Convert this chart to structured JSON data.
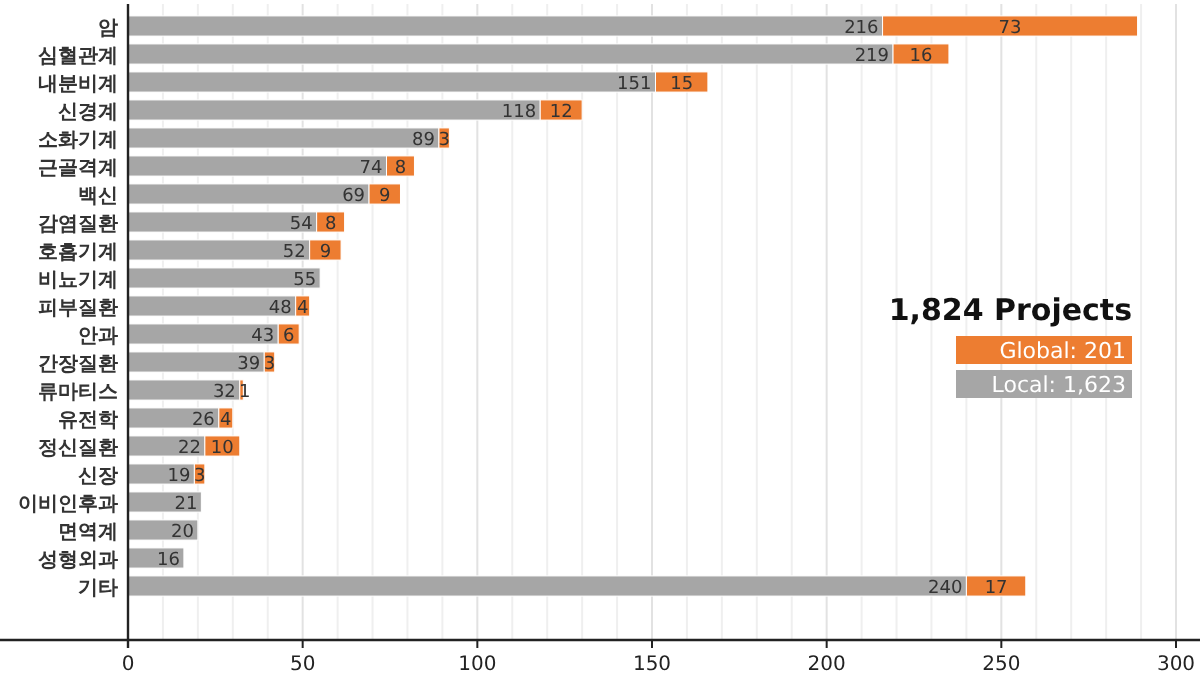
{
  "chart_data": {
    "type": "bar",
    "orientation": "horizontal",
    "stacked": true,
    "categories": [
      "암",
      "심혈관계",
      "내분비계",
      "신경계",
      "소화기계",
      "근골격계",
      "백신",
      "감염질환",
      "호흡기계",
      "비뇨기계",
      "피부질환",
      "안과",
      "간장질환",
      "류마티스",
      "유전학",
      "정신질환",
      "신장",
      "이비인후과",
      "면역계",
      "성형외과",
      "기타"
    ],
    "series": [
      {
        "name": "Local: 1,623",
        "color": "#a6a6a6",
        "values": [
          216,
          219,
          151,
          118,
          89,
          74,
          69,
          54,
          52,
          55,
          48,
          43,
          39,
          32,
          26,
          22,
          19,
          21,
          20,
          16,
          240
        ]
      },
      {
        "name": "Global: 201",
        "color": "#ed7d31",
        "values": [
          73,
          16,
          15,
          12,
          3,
          8,
          9,
          8,
          9,
          null,
          4,
          6,
          3,
          1,
          4,
          10,
          3,
          null,
          null,
          null,
          17
        ]
      }
    ],
    "legend_title": "1,824 Projects",
    "legend": "right",
    "xlim": [
      0,
      300
    ],
    "xticks": [
      0,
      {
        "value": 10,
        "label": null
      },
      {
        "value": 20,
        "label": null
      },
      {
        "value": 30,
        "label": null
      },
      {
        "value": 40,
        "label": null
      },
      50,
      {
        "value": 60,
        "label": null
      },
      {
        "value": 70,
        "label": null
      },
      {
        "value": 80,
        "label": null
      },
      {
        "value": 90,
        "label": null
      },
      100,
      {
        "value": 110,
        "label": null
      },
      {
        "value": 120,
        "label": null
      },
      {
        "value": 130,
        "label": null
      },
      {
        "value": 140,
        "label": null
      },
      150,
      {
        "value": 160,
        "label": null
      },
      {
        "value": 170,
        "label": null
      },
      {
        "value": 180,
        "label": null
      },
      {
        "value": 190,
        "label": null
      },
      200,
      {
        "value": 210,
        "label": null
      },
      {
        "value": 220,
        "label": null
      },
      {
        "value": 230,
        "label": null
      },
      {
        "value": 240,
        "label": null
      },
      250,
      {
        "value": 260,
        "label": null
      },
      {
        "value": 270,
        "label": null
      },
      {
        "value": 280,
        "label": null
      },
      {
        "value": 290,
        "label": null
      },
      300
    ],
    "grid": "x",
    "data_labels": true
  }
}
